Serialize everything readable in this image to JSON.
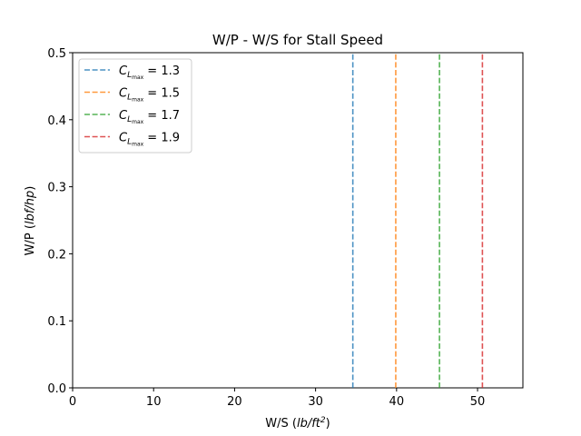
{
  "chart_data": {
    "type": "line",
    "title": "W/P - W/S for Stall Speed",
    "xlabel": {
      "prefix": "W/S (",
      "unit": "lb/ft",
      "sup": "2",
      "suffix": ")"
    },
    "ylabel": {
      "prefix": "W/P (",
      "unit": "lbf/hp",
      "suffix": ")"
    },
    "xlim": [
      0,
      55.6
    ],
    "ylim": [
      0,
      0.5
    ],
    "xticks": [
      0,
      10,
      20,
      30,
      40,
      50
    ],
    "yticks": [
      0.0,
      0.1,
      0.2,
      0.3,
      0.4,
      0.5
    ],
    "xtick_labels": [
      "0",
      "10",
      "20",
      "30",
      "40",
      "50"
    ],
    "ytick_labels": [
      "0.0",
      "0.1",
      "0.2",
      "0.3",
      "0.4",
      "0.5"
    ],
    "grid": false,
    "legend_position": "top-left",
    "series": [
      {
        "name_symbol": "C",
        "name_sub": "L",
        "name_subsub": "max",
        "name_value": " = 1.3",
        "x": 34.6,
        "color": "#1f77b4"
      },
      {
        "name_symbol": "C",
        "name_sub": "L",
        "name_subsub": "max",
        "name_value": " = 1.5",
        "x": 39.9,
        "color": "#ff7f0e"
      },
      {
        "name_symbol": "C",
        "name_sub": "L",
        "name_subsub": "max",
        "name_value": " = 1.7",
        "x": 45.3,
        "color": "#2ca02c"
      },
      {
        "name_symbol": "C",
        "name_sub": "L",
        "name_subsub": "max",
        "name_value": " = 1.9",
        "x": 50.6,
        "color": "#d62728"
      }
    ]
  }
}
